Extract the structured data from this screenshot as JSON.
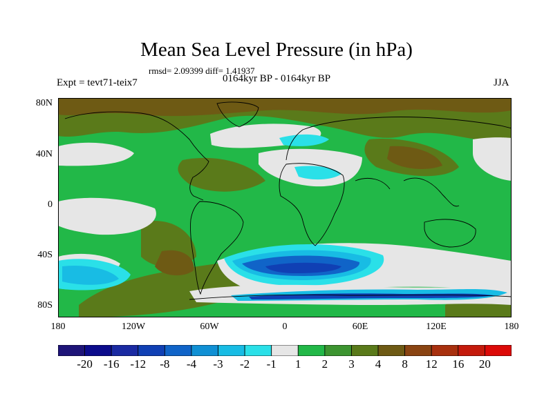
{
  "title": "Mean Sea Level Pressure (in hPa)",
  "stats": "rmsd= 2.09399 diff= 1.41937",
  "experiment": "Expt = tevt71-teix7",
  "period": "0164kyr BP - 0164kyr BP",
  "season": "JJA",
  "lat_labels": [
    "80N",
    "40N",
    "0",
    "40S",
    "80S"
  ],
  "lon_labels": [
    "180",
    "120W",
    "60W",
    "0",
    "60E",
    "120E",
    "180"
  ],
  "colorbar": {
    "labels": [
      "-20",
      "-16",
      "-12",
      "-8",
      "-4",
      "-3",
      "-2",
      "-1",
      "1",
      "2",
      "3",
      "4",
      "8",
      "12",
      "16",
      "20"
    ],
    "colors": [
      "#1e1478",
      "#0c0c8c",
      "#1a2aa2",
      "#1040b4",
      "#1064c8",
      "#1090d4",
      "#18bce4",
      "#2ae0e8",
      "#e6e6e6",
      "#22b848",
      "#3c9430",
      "#5a7a1a",
      "#6e5a14",
      "#8a4412",
      "#a8300e",
      "#c41a0c",
      "#dc0a08"
    ]
  },
  "palette": {
    "land_green": "#22b848",
    "light_green": "#3c9430",
    "olive": "#5a7a1a",
    "brown": "#6e5a14",
    "grey": "#e6e6e6",
    "cyan": "#2ae0e8",
    "sky": "#18bce4",
    "blue": "#1064c8",
    "deep_blue": "#1040b4"
  }
}
